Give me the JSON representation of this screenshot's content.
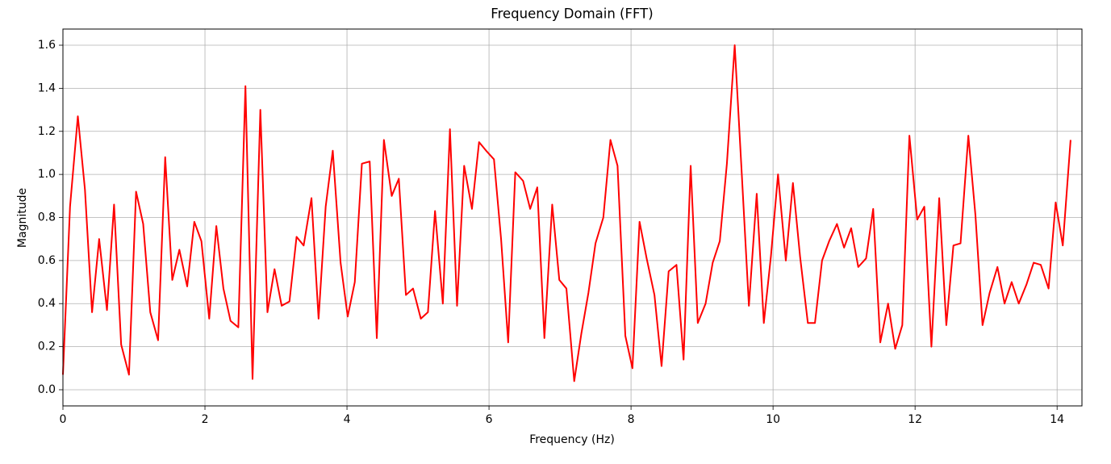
{
  "chart_data": {
    "type": "line",
    "title": "Frequency Domain (FFT)",
    "x_label": "Frequency (Hz)",
    "y_label": "Magnitude",
    "color": "#ff0000",
    "grid": true,
    "xlim": [
      0,
      14.35
    ],
    "ylim": [
      -0.075,
      1.675
    ],
    "xticks": [
      0,
      2,
      4,
      6,
      8,
      10,
      12,
      14
    ],
    "yticks": [
      {
        "value": 0,
        "label": "0.0"
      },
      0.2,
      0.4,
      0.6,
      0.8,
      {
        "value": 1,
        "label": "1.0"
      },
      1.2,
      1.4,
      1.6
    ],
    "x": [
      0,
      0.1,
      0.21,
      0.31,
      0.41,
      0.51,
      0.62,
      0.72,
      0.82,
      0.93,
      1.03,
      1.13,
      1.23,
      1.34,
      1.44,
      1.54,
      1.64,
      1.75,
      1.85,
      1.95,
      2.06,
      2.16,
      2.26,
      2.36,
      2.47,
      2.57,
      2.67,
      2.78,
      2.88,
      2.98,
      3.08,
      3.19,
      3.29,
      3.39,
      3.5,
      3.6,
      3.7,
      3.8,
      3.91,
      4.01,
      4.11,
      4.21,
      4.32,
      4.42,
      4.52,
      4.63,
      4.73,
      4.83,
      4.93,
      5.04,
      5.14,
      5.24,
      5.35,
      5.45,
      5.55,
      5.65,
      5.76,
      5.86,
      5.96,
      6.07,
      6.17,
      6.27,
      6.37,
      6.48,
      6.58,
      6.68,
      6.78,
      6.89,
      6.99,
      7.09,
      7.2,
      7.3,
      7.4,
      7.5,
      7.61,
      7.71,
      7.81,
      7.92,
      8.02,
      8.12,
      8.22,
      8.33,
      8.43,
      8.53,
      8.64,
      8.74,
      8.84,
      8.94,
      9.05,
      9.15,
      9.25,
      9.35,
      9.46,
      9.56,
      9.66,
      9.77,
      9.87,
      9.97,
      10.07,
      10.18,
      10.28,
      10.38,
      10.49,
      10.59,
      10.69,
      10.79,
      10.9,
      11.0,
      11.1,
      11.2,
      11.31,
      11.41,
      11.51,
      11.62,
      11.72,
      11.82,
      11.92,
      12.03,
      12.13,
      12.23,
      12.34,
      12.44,
      12.54,
      12.64,
      12.75,
      12.85,
      12.95,
      13.05,
      13.16,
      13.26,
      13.36,
      13.46,
      13.57,
      13.67,
      13.77,
      13.88,
      13.98,
      14.08,
      14.19
    ],
    "values": [
      0.07,
      0.85,
      1.27,
      0.93,
      0.36,
      0.7,
      0.37,
      0.86,
      0.21,
      0.07,
      0.92,
      0.77,
      0.36,
      0.23,
      1.08,
      0.51,
      0.65,
      0.48,
      0.78,
      0.69,
      0.33,
      0.76,
      0.47,
      0.32,
      0.29,
      1.41,
      0.05,
      1.3,
      0.36,
      0.56,
      0.39,
      0.41,
      0.71,
      0.67,
      0.89,
      0.33,
      0.85,
      1.11,
      0.59,
      0.34,
      0.5,
      1.05,
      1.06,
      0.24,
      1.16,
      0.9,
      0.98,
      0.44,
      0.47,
      0.33,
      0.36,
      0.83,
      0.4,
      1.21,
      0.39,
      1.04,
      0.84,
      1.15,
      1.11,
      1.07,
      0.7,
      0.22,
      1.01,
      0.97,
      0.84,
      0.94,
      0.24,
      0.86,
      0.51,
      0.47,
      0.04,
      0.26,
      0.45,
      0.68,
      0.8,
      1.16,
      1.04,
      0.25,
      0.1,
      0.78,
      0.61,
      0.44,
      0.11,
      0.55,
      0.58,
      0.14,
      1.04,
      0.31,
      0.4,
      0.59,
      0.69,
      1.05,
      1.6,
      1.0,
      0.39,
      0.91,
      0.31,
      0.62,
      1.0,
      0.6,
      0.96,
      0.62,
      0.31,
      0.31,
      0.6,
      0.69,
      0.77,
      0.66,
      0.75,
      0.57,
      0.61,
      0.84,
      0.22,
      0.4,
      0.19,
      0.3,
      1.18,
      0.79,
      0.85,
      0.2,
      0.89,
      0.3,
      0.67,
      0.68,
      1.18,
      0.81,
      0.3,
      0.45,
      0.57,
      0.4,
      0.5,
      0.4,
      0.49,
      0.59,
      0.58,
      0.47,
      0.87,
      0.67,
      1.16
    ]
  }
}
